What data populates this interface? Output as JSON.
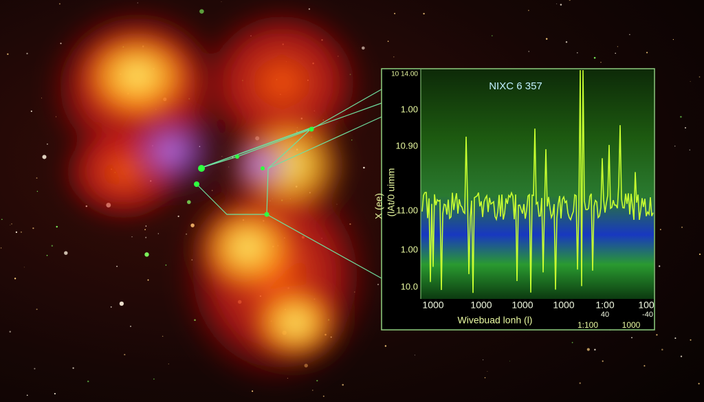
{
  "inset": {
    "title": "NIXC 6 357",
    "y_axis_title": [
      "X (ee)",
      "(lAt/0 uimm"
    ],
    "y_labels": [
      "10 14.00",
      "1.00",
      "10.90",
      "11.00",
      "1.00",
      "10.0"
    ],
    "x_labels": [
      "1000",
      "1000",
      "1000",
      "1000",
      "1:00",
      "100"
    ],
    "x_sublabels": [
      "40",
      "-40"
    ],
    "x_axis_title": "Wivebuad lonh (l)",
    "footer_labels": [
      "1:100",
      "1000"
    ]
  }
}
